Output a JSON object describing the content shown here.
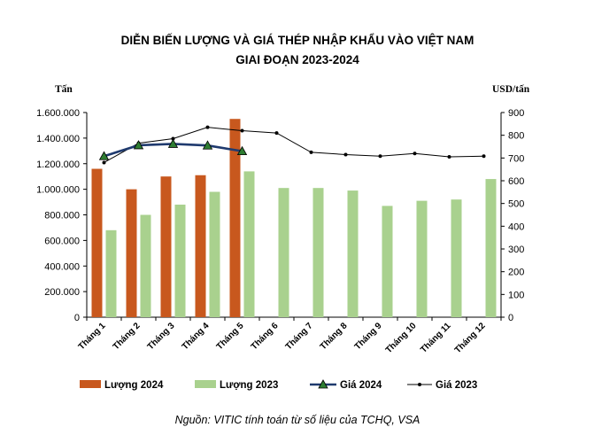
{
  "chart_data": {
    "type": "bar+line",
    "title_line1": "DIỄN BIẾN LƯỢNG VÀ GIÁ THÉP NHẬP KHẨU VÀO VIỆT NAM",
    "title_line2": "GIAI ĐOẠN 2023-2024",
    "y_left_label": "Tấn",
    "y_right_label": "USD/tấn",
    "y_left_range": [
      0,
      1600000
    ],
    "y_left_ticks": [
      "0",
      "200.000",
      "400.000",
      "600.000",
      "800.000",
      "1.000.000",
      "1.200.000",
      "1.400.000",
      "1.600.000"
    ],
    "y_right_range": [
      0,
      900
    ],
    "y_right_ticks": [
      "0",
      "100",
      "200",
      "300",
      "400",
      "500",
      "600",
      "700",
      "800",
      "900"
    ],
    "categories": [
      "Tháng 1",
      "Tháng 2",
      "Tháng 3",
      "Tháng 4",
      "Tháng 5",
      "Tháng 6",
      "Tháng 7",
      "Tháng 8",
      "Tháng 9",
      "Tháng 10",
      "Tháng 11",
      "Tháng 12"
    ],
    "bar_series": [
      {
        "name": "Lượng 2024",
        "color": "#c8581e",
        "values": [
          1160000,
          1000000,
          1100000,
          1110000,
          1550000,
          null,
          null,
          null,
          null,
          null,
          null,
          null
        ]
      },
      {
        "name": "Lượng 2023",
        "color": "#a9d18e",
        "values": [
          680000,
          800000,
          880000,
          980000,
          1140000,
          1010000,
          1010000,
          990000,
          870000,
          910000,
          920000,
          1080000
        ]
      }
    ],
    "line_series": [
      {
        "name": "Giá 2024",
        "color": "#1f3a6e",
        "marker": "triangle",
        "marker_color": "#2e7d32",
        "values": [
          708,
          756,
          762,
          755,
          730,
          null,
          null,
          null,
          null,
          null,
          null,
          null
        ]
      },
      {
        "name": "Giá 2023",
        "color": "#000000",
        "marker": "dot",
        "values": [
          680,
          765,
          785,
          835,
          820,
          810,
          725,
          715,
          708,
          720,
          705,
          708
        ]
      }
    ],
    "legend": [
      "Lượng 2024",
      "Lượng 2023",
      "Giá 2024",
      "Giá 2023"
    ],
    "grid": false,
    "source": "Nguồn: VITIC tính toán từ số liệu của TCHQ, VSA"
  }
}
